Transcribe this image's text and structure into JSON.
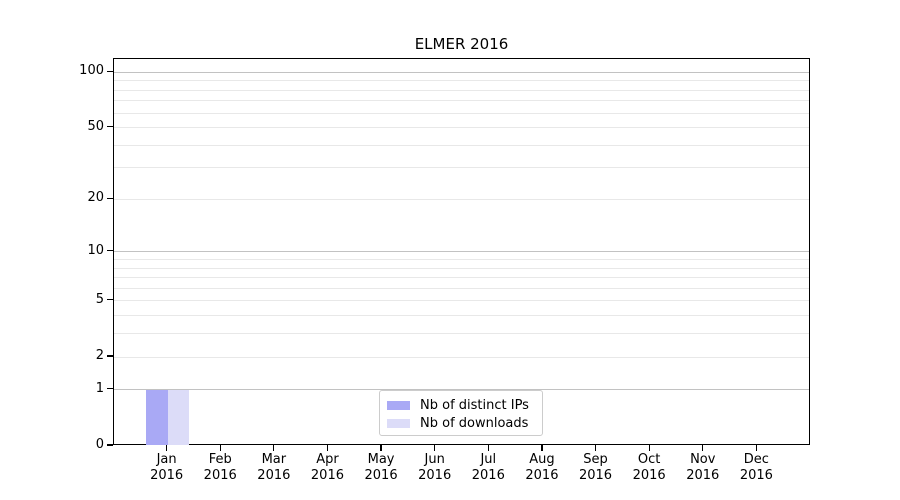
{
  "figure": {
    "title": "ELMER 2016"
  },
  "chart_data": {
    "type": "bar",
    "title": "ELMER 2016",
    "categories": [
      "Jan 2016",
      "Feb 2016",
      "Mar 2016",
      "Apr 2016",
      "May 2016",
      "Jun 2016",
      "Jul 2016",
      "Aug 2016",
      "Sep 2016",
      "Oct 2016",
      "Nov 2016",
      "Dec 2016"
    ],
    "series": [
      {
        "name": "Nb of distinct IPs",
        "color": "#a9a9f5",
        "values": [
          1,
          0,
          0,
          0,
          0,
          0,
          0,
          0,
          0,
          0,
          0,
          0
        ]
      },
      {
        "name": "Nb of downloads",
        "color": "#dcdcf8",
        "values": [
          1,
          0,
          0,
          0,
          0,
          0,
          0,
          0,
          0,
          0,
          0,
          0
        ]
      }
    ],
    "y_axis": {
      "scale": "log1p",
      "tick_values": [
        0,
        1,
        2,
        5,
        10,
        20,
        50,
        100
      ],
      "emphasized_gridlines": [
        1,
        10,
        100
      ],
      "minor_gridlines": [
        2,
        3,
        4,
        5,
        6,
        7,
        8,
        9,
        20,
        30,
        40,
        50,
        60,
        70,
        80,
        90
      ],
      "range": [
        0,
        118
      ]
    },
    "x_axis": {
      "tick_count": 12
    },
    "legend": {
      "position": "bottom-center",
      "entries": [
        "Nb of distinct IPs",
        "Nb of downloads"
      ]
    },
    "colors": {
      "axis": "#000000",
      "grid_emphasized": "#c2c2c2",
      "grid_minor": "#e8e8e8",
      "legend_border": "#cccccc",
      "text": "#000000"
    }
  }
}
